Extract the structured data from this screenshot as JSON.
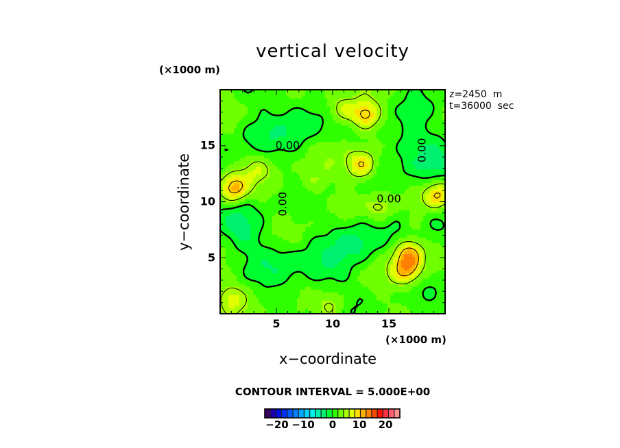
{
  "chart_data": {
    "type": "heatmap",
    "title": "vertical velocity",
    "xlabel": "x−coordinate",
    "ylabel": "y−coordinate",
    "x_unit": "(×1000 m)",
    "y_unit": "(×1000 m)",
    "xlim": [
      0,
      20
    ],
    "ylim": [
      0,
      20
    ],
    "x_ticks": [
      "5",
      "10",
      "15"
    ],
    "x_tick_values": [
      5,
      10,
      15
    ],
    "y_ticks": [
      "5",
      "10",
      "15"
    ],
    "y_tick_values": [
      5,
      10,
      15
    ],
    "annotations": [
      "z=2450  m",
      "t=36000  sec"
    ],
    "contour_labels": [
      "0.00",
      "0.00",
      "0.00",
      "0.00"
    ],
    "contour_interval_text": "CONTOUR INTERVAL = 5.000E+00",
    "contour_interval": 5.0,
    "colorbar": {
      "range": [
        -26,
        26
      ],
      "tick_labels": [
        "−20",
        "−10",
        "0",
        "10",
        "20"
      ],
      "tick_values": [
        -20,
        -10,
        0,
        10,
        20
      ],
      "colors": [
        "#3b0066",
        "#1a00b0",
        "#0010e0",
        "#0030ff",
        "#0058ff",
        "#0080ff",
        "#00a8ff",
        "#00d0ff",
        "#00f0f0",
        "#00f0b0",
        "#00f070",
        "#00ff30",
        "#30ff00",
        "#70ff00",
        "#a8ff00",
        "#e0ff00",
        "#ffe000",
        "#ffb000",
        "#ff8000",
        "#ff4800",
        "#ff1000",
        "#ff3040",
        "#ff6070",
        "#ff9090"
      ]
    },
    "features": [
      {
        "kind": "max",
        "x": 1.2,
        "y": 11.2,
        "value": 12
      },
      {
        "kind": "max",
        "x": 12.9,
        "y": 17.8,
        "value": 12
      },
      {
        "kind": "max",
        "x": 12.6,
        "y": 13.3,
        "value": 11
      },
      {
        "kind": "max",
        "x": 16.8,
        "y": 5.4,
        "value": 12
      },
      {
        "kind": "max",
        "x": 16.6,
        "y": 3.9,
        "value": 11
      },
      {
        "kind": "max",
        "x": 19.4,
        "y": 10.6,
        "value": 11
      },
      {
        "kind": "max",
        "x": 10.9,
        "y": 18.2,
        "value": 8
      },
      {
        "kind": "max",
        "x": 14.2,
        "y": 9.6,
        "value": 6
      },
      {
        "kind": "max",
        "x": 8.2,
        "y": 11.7,
        "value": 5
      },
      {
        "kind": "max",
        "x": 1.0,
        "y": 1.5,
        "value": 6
      },
      {
        "kind": "max",
        "x": 9.9,
        "y": 0.8,
        "value": 6
      },
      {
        "kind": "max",
        "x": 3.2,
        "y": 13.0,
        "value": 5
      },
      {
        "kind": "max",
        "x": 17.5,
        "y": 8.0,
        "value": 5
      },
      {
        "kind": "min",
        "x": 7.5,
        "y": 17.5,
        "value": -4
      },
      {
        "kind": "min",
        "x": 16.5,
        "y": 16.0,
        "value": -4
      },
      {
        "kind": "min",
        "x": 18.5,
        "y": 13.0,
        "value": -4
      },
      {
        "kind": "min",
        "x": 2.0,
        "y": 7.5,
        "value": -4
      },
      {
        "kind": "min",
        "x": 12.2,
        "y": 6.6,
        "value": -5
      },
      {
        "kind": "min",
        "x": 5.5,
        "y": 4.5,
        "value": -3
      },
      {
        "kind": "min",
        "x": 19.0,
        "y": 8.0,
        "value": -3
      },
      {
        "kind": "min",
        "x": 3.0,
        "y": 16.0,
        "value": -3
      },
      {
        "kind": "min",
        "x": 9.0,
        "y": 3.5,
        "value": -3
      }
    ]
  }
}
